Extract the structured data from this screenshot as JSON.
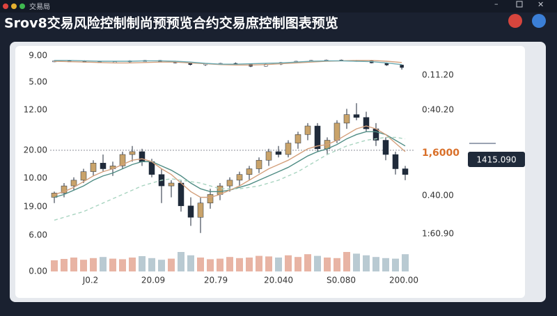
{
  "window": {
    "title": "交易局"
  },
  "header": {
    "title": "Srov8交易风险控制制尚预预览合约交易庶控制图表预览"
  },
  "axis_labels": {
    "left": [
      "9.00",
      "5.00",
      "12.00",
      "20.00",
      "10.00",
      "19.00",
      "6.00",
      "0.00"
    ],
    "right": [
      "0.11.20",
      "0:40.20",
      "1,6000",
      "0.40.00",
      "1:60.90"
    ],
    "bottom": [
      "J0.2",
      "20.09",
      "20.79",
      "20.040",
      "S0.080",
      "200.00"
    ]
  },
  "price_tag": "1415.090",
  "chart_data": [
    {
      "type": "candlestick",
      "ylim": [
        0,
        100
      ],
      "up_color": "#c9a36a",
      "down_color": "#1f2a3a",
      "open": [
        30,
        33,
        38,
        42,
        48,
        54,
        50,
        52,
        60,
        62,
        55,
        46,
        38,
        40,
        24,
        16,
        26,
        32,
        38,
        42,
        46,
        50,
        56,
        62,
        60,
        68,
        74,
        80,
        64,
        70,
        82,
        88,
        86,
        78,
        70,
        60,
        50
      ],
      "high": [
        34,
        40,
        44,
        50,
        56,
        60,
        55,
        62,
        66,
        64,
        57,
        50,
        42,
        42,
        30,
        30,
        36,
        40,
        44,
        48,
        52,
        58,
        64,
        66,
        70,
        76,
        82,
        82,
        72,
        84,
        92,
        96,
        90,
        82,
        72,
        62,
        52
      ],
      "low": [
        26,
        30,
        35,
        40,
        45,
        48,
        45,
        50,
        55,
        52,
        44,
        26,
        30,
        20,
        10,
        5,
        22,
        28,
        34,
        38,
        42,
        47,
        52,
        58,
        58,
        64,
        70,
        62,
        60,
        68,
        78,
        84,
        76,
        66,
        56,
        46,
        42
      ],
      "close": [
        33,
        38,
        42,
        48,
        54,
        50,
        52,
        60,
        62,
        55,
        46,
        38,
        40,
        24,
        16,
        26,
        32,
        38,
        42,
        46,
        50,
        56,
        62,
        60,
        68,
        74,
        80,
        64,
        70,
        82,
        88,
        86,
        78,
        70,
        60,
        50,
        46
      ],
      "ref_line": 63,
      "ref_color": "#8a8f99",
      "series": [
        {
          "color": "#4f8c84",
          "style": "solid",
          "values": [
            30,
            32,
            35,
            38,
            42,
            45,
            47,
            50,
            53,
            55,
            55,
            52,
            49,
            45,
            40,
            36,
            34,
            34,
            35,
            37,
            39,
            42,
            45,
            48,
            51,
            55,
            59,
            62,
            64,
            67,
            71,
            74,
            76,
            76,
            74,
            70,
            66
          ]
        },
        {
          "color": "#d4a07c",
          "style": "solid",
          "values": [
            32,
            34,
            37,
            41,
            45,
            48,
            50,
            53,
            56,
            57,
            55,
            50,
            46,
            40,
            34,
            30,
            30,
            32,
            35,
            38,
            42,
            46,
            50,
            53,
            56,
            60,
            64,
            66,
            67,
            70,
            74,
            78,
            80,
            78,
            74,
            68,
            62
          ]
        },
        {
          "color": "#a8d4c0",
          "style": "dashed",
          "values": [
            14,
            16,
            18,
            20,
            23,
            26,
            29,
            32,
            35,
            38,
            40,
            42,
            43,
            42,
            41,
            40,
            38,
            36,
            36,
            36,
            37,
            38,
            40,
            42,
            45,
            48,
            52,
            56,
            60,
            63,
            66,
            68,
            70,
            71,
            72,
            72,
            71
          ]
        }
      ]
    },
    {
      "type": "candlestick",
      "ylim": [
        0,
        100
      ],
      "up_color": "#ffffff",
      "down_color": "#1f2a3a",
      "open": [
        80,
        82,
        80,
        78,
        74,
        78,
        82,
        84,
        80,
        72,
        64,
        68,
        70,
        66,
        56,
        66,
        74,
        80,
        84,
        86,
        82,
        84,
        72,
        62
      ],
      "high": [
        84,
        86,
        84,
        82,
        80,
        84,
        86,
        86,
        82,
        76,
        70,
        72,
        74,
        70,
        68,
        76,
        82,
        86,
        88,
        88,
        86,
        86,
        74,
        64
      ],
      "low": [
        76,
        78,
        76,
        72,
        70,
        74,
        80,
        78,
        70,
        60,
        58,
        62,
        64,
        52,
        54,
        62,
        70,
        76,
        80,
        80,
        78,
        70,
        58,
        40
      ],
      "close": [
        82,
        80,
        78,
        74,
        78,
        82,
        84,
        80,
        72,
        64,
        68,
        70,
        66,
        56,
        66,
        74,
        80,
        84,
        86,
        82,
        84,
        72,
        62,
        50
      ],
      "series": [
        {
          "color": "#d4a07c",
          "style": "solid",
          "values": [
            80,
            78,
            76,
            74,
            72,
            72,
            74,
            76,
            76,
            72,
            68,
            64,
            62,
            62,
            64,
            68,
            72,
            76,
            80,
            82,
            84,
            84,
            80,
            74
          ]
        },
        {
          "color": "#6aa8b0",
          "style": "solid",
          "values": [
            84,
            84,
            82,
            80,
            80,
            80,
            82,
            82,
            80,
            76,
            70,
            66,
            66,
            68,
            70,
            72,
            76,
            80,
            82,
            82,
            80,
            78,
            72,
            64
          ]
        }
      ]
    },
    {
      "type": "bar",
      "ylim": [
        0,
        100
      ],
      "up_color": "#e8b4a4",
      "down_color": "#b9cad2",
      "values": [
        40,
        45,
        50,
        42,
        48,
        52,
        46,
        44,
        50,
        55,
        48,
        42,
        46,
        70,
        58,
        50,
        44,
        46,
        52,
        48,
        50,
        56,
        54,
        50,
        58,
        52,
        62,
        56,
        50,
        48,
        70,
        64,
        58,
        52,
        48,
        46,
        62
      ]
    }
  ]
}
